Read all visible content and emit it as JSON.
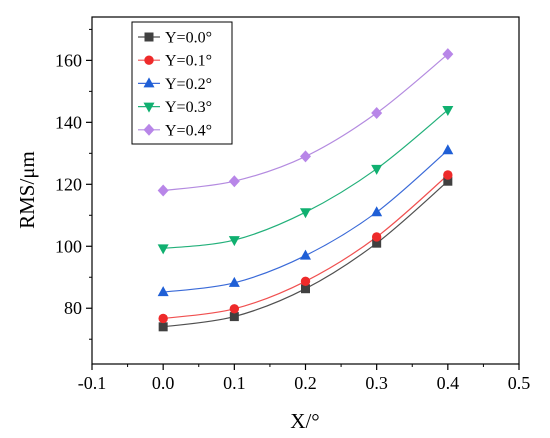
{
  "chart_data": {
    "type": "line",
    "x": [
      0.0,
      0.1,
      0.2,
      0.3,
      0.4
    ],
    "xlabel": "X/°",
    "ylabel": "RMS/μm",
    "xlim": [
      -0.1,
      0.5
    ],
    "ylim": [
      62,
      174
    ],
    "xticks": [
      "-0.1",
      "0.0",
      "0.1",
      "0.2",
      "0.3",
      "0.4",
      "0.5"
    ],
    "yticks": [
      "80",
      "100",
      "120",
      "140",
      "160"
    ],
    "grid": false,
    "legend_position": "top-left",
    "series": [
      {
        "name": "Y=0.0°",
        "marker": "square",
        "line_color": "#505050",
        "marker_color": "#404040",
        "values": [
          74,
          77.3,
          86.3,
          101,
          121
        ]
      },
      {
        "name": "Y=0.1°",
        "marker": "circle",
        "line_color": "#f05050",
        "marker_color": "#ee2a2a",
        "values": [
          76.7,
          79.8,
          88.7,
          103,
          123
        ]
      },
      {
        "name": "Y=0.2°",
        "marker": "triangle-up",
        "line_color": "#3a6ad8",
        "marker_color": "#1f5fd6",
        "values": [
          85.2,
          88.2,
          97,
          111,
          131
        ]
      },
      {
        "name": "Y=0.3°",
        "marker": "triangle-down",
        "line_color": "#22b07a",
        "marker_color": "#10b070",
        "values": [
          99.3,
          102,
          111,
          125,
          144
        ]
      },
      {
        "name": "Y=0.4°",
        "marker": "diamond",
        "line_color": "#b48be0",
        "marker_color": "#b886e8",
        "values": [
          118,
          121,
          129,
          143,
          162
        ]
      }
    ]
  }
}
